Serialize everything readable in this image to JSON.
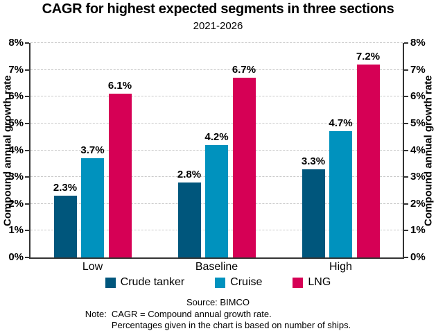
{
  "title": "CAGR for highest expected segments in three sections",
  "subtitle": "2021-2026",
  "chart_data": {
    "type": "bar",
    "categories": [
      "Low",
      "Baseline",
      "High"
    ],
    "series": [
      {
        "name": "Crude tanker",
        "color": "#00567C",
        "values": [
          2.3,
          2.8,
          3.3
        ],
        "labels": [
          "2.3%",
          "2.8%",
          "3.3%"
        ]
      },
      {
        "name": "Cruise",
        "color": "#0092BE",
        "values": [
          3.7,
          4.2,
          4.7
        ],
        "labels": [
          "3.7%",
          "4.2%",
          "4.7%"
        ]
      },
      {
        "name": "LNG",
        "color": "#D60055",
        "values": [
          6.1,
          6.7,
          7.2
        ],
        "labels": [
          "6.1%",
          "6.7%",
          "7.2%"
        ]
      }
    ],
    "ylabel_left": "Compound annual growth rate",
    "ylabel_right": "Compound annual growth rate",
    "ylim": [
      0,
      8
    ],
    "yticks": [
      "0%",
      "1%",
      "2%",
      "3%",
      "4%",
      "5%",
      "6%",
      "7%",
      "8%"
    ],
    "grid": "horizontal-dashed",
    "legend_position": "bottom",
    "colors": {
      "axis": "#333333",
      "gridline": "#c8c8c8",
      "text": "#000000"
    }
  },
  "footer": {
    "source": "Source: BIMCO",
    "note_label": "Note:",
    "note_lines": [
      "CAGR = Compound annual growth rate.",
      "Percentages given in the chart is based on number of ships."
    ]
  }
}
